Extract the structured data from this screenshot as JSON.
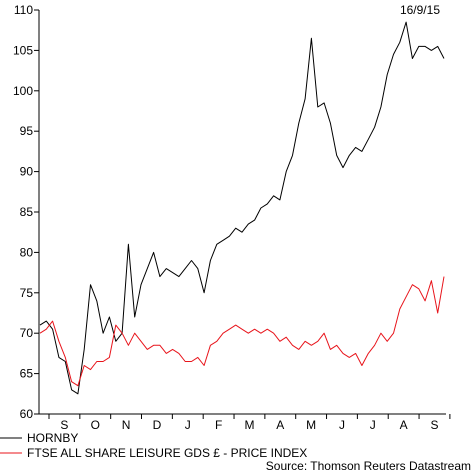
{
  "header": {
    "date": "16/9/15"
  },
  "footer": {
    "source": "Source: Thomson Reuters Datastream"
  },
  "colors": {
    "hornby": "#000000",
    "ftse": "#e8141b"
  },
  "chart_data": {
    "type": "line",
    "title": "",
    "xlabel": "",
    "ylabel": "",
    "ylim": [
      60,
      110
    ],
    "yticks": [
      60,
      65,
      70,
      75,
      80,
      85,
      90,
      95,
      100,
      105,
      110
    ],
    "xtick_labels": [
      "S",
      "O",
      "N",
      "D",
      "J",
      "F",
      "M",
      "A",
      "M",
      "J",
      "J",
      "A",
      "S"
    ],
    "x_period": "Sep 2014 - Sep 2015 (weekly)",
    "grid": false,
    "legend": "bottom-left",
    "series": [
      {
        "name": "HORNBY",
        "color": "#000000",
        "values": [
          71,
          71.5,
          70.5,
          67,
          66.5,
          63,
          62.5,
          68,
          76,
          74,
          70,
          72,
          69,
          70,
          81,
          72,
          76,
          78,
          80,
          77,
          78,
          77.5,
          77,
          78,
          79,
          78,
          75,
          79,
          81,
          81.5,
          82,
          83,
          82.5,
          83.5,
          84,
          85.5,
          86,
          87,
          86.5,
          90,
          92,
          96,
          99,
          106.5,
          98,
          98.5,
          96,
          92,
          90.5,
          92,
          93,
          92.5,
          94,
          95.5,
          98,
          102,
          104.5,
          106,
          108.5,
          104,
          105.5,
          105.5,
          105,
          105.5,
          104
        ]
      },
      {
        "name": "FTSE ALL SHARE LEISURE GDS £ - PRICE INDEX",
        "color": "#e8141b",
        "values": [
          70,
          70.5,
          71.5,
          69,
          67,
          64,
          63.5,
          66,
          65.5,
          66.5,
          66.5,
          67,
          71,
          70,
          68.5,
          70,
          69,
          68,
          68.5,
          68.5,
          67.5,
          68,
          67.5,
          66.5,
          66.5,
          67,
          66,
          68.5,
          69,
          70,
          70.5,
          71,
          70.5,
          70,
          70.5,
          70,
          70.5,
          70,
          69,
          69.5,
          68.5,
          68,
          69,
          68.5,
          69,
          70,
          68,
          68.5,
          67.5,
          67,
          67.5,
          66,
          67.5,
          68.5,
          70,
          69,
          70,
          73,
          74.5,
          76,
          75.5,
          74,
          76.5,
          72.5,
          77
        ]
      }
    ]
  }
}
